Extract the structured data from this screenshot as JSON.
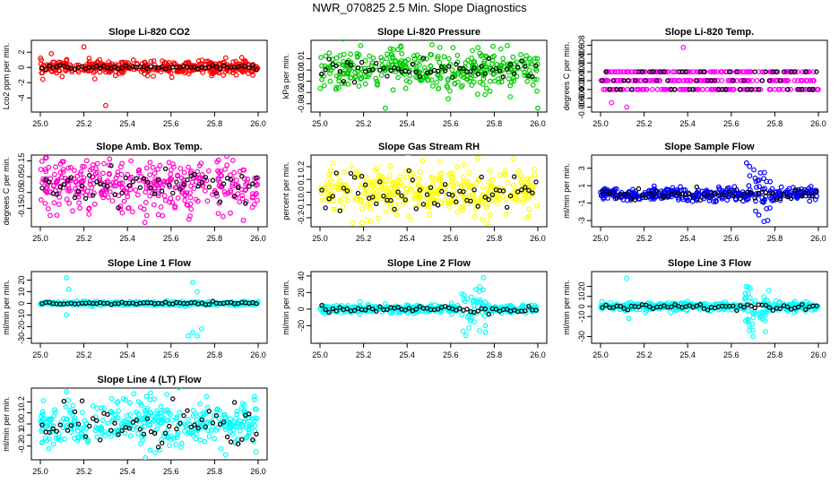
{
  "page_title": "NWR_070825  2.5 Min. Slope Diagnostics",
  "colors": {
    "red": "#ff0000",
    "green": "#00cc00",
    "magenta": "#ff00ff",
    "yellow": "#ffff00",
    "blue": "#0000ff",
    "cyan": "#00ffff",
    "black": "#000000"
  },
  "chart_data": [
    {
      "type": "scatter",
      "title": "Slope Li-820 CO2",
      "ylabel": "Lco2 ppm per min.",
      "color": "#ff0000",
      "xlim": [
        25.0,
        26.0
      ],
      "ylim": [
        -5.5,
        3.2
      ],
      "xticks": [
        25.0,
        25.2,
        25.4,
        25.6,
        25.8,
        26.0
      ],
      "xtick_labels": [
        "25.0",
        "25.2",
        "25.4",
        "25.6",
        "25.8",
        "26.0"
      ],
      "yticks": [
        -4,
        -2,
        0,
        2
      ],
      "ytick_labels": [
        "-4",
        "-2",
        "0",
        "2"
      ],
      "spread": 0.45,
      "black_spread": 0.12,
      "outliers": [
        [
          25.1,
          -1.2
        ],
        [
          25.2,
          2.7
        ],
        [
          25.3,
          -5.0
        ],
        [
          25.05,
          1.8
        ],
        [
          25.25,
          -1.5
        ]
      ]
    },
    {
      "type": "scatter",
      "title": "Slope Li-820 Pressure",
      "ylabel": "kPa per min.",
      "color": "#00cc00",
      "xlim": [
        25.0,
        26.0
      ],
      "ylim": [
        -0.035,
        0.024
      ],
      "xticks": [
        25.0,
        25.2,
        25.4,
        25.6,
        25.8,
        26.0
      ],
      "xtick_labels": [
        "25.0",
        "25.2",
        "25.4",
        "25.6",
        "25.8",
        "26.0"
      ],
      "yticks": [
        -0.03,
        -0.02,
        -0.01,
        0.0,
        0.01
      ],
      "ytick_labels": [
        "-0.03",
        "-0.02",
        "-0.01",
        "0.00",
        "0.01"
      ],
      "spread": 0.009,
      "black_spread": 0.006,
      "outliers": [
        [
          25.3,
          -0.034
        ],
        [
          26.0,
          -0.034
        ],
        [
          25.55,
          0.02
        ]
      ]
    },
    {
      "type": "scatter",
      "title": "Slope Li-820 Temp.",
      "ylabel": "degrees C per min.",
      "color": "#ff00ff",
      "xlim": [
        25.0,
        26.0
      ],
      "ylim": [
        -0.0065,
        0.0085
      ],
      "xticks": [
        25.0,
        25.2,
        25.4,
        25.6,
        25.8,
        26.0
      ],
      "xtick_labels": [
        "25.0",
        "25.2",
        "25.4",
        "25.6",
        "25.8",
        "26.0"
      ],
      "yticks": [
        -0.006,
        -0.004,
        -0.002,
        0.0,
        0.002,
        0.004,
        0.006,
        0.008
      ],
      "ytick_labels": [
        "-0.006",
        "-0.004",
        "-0.002",
        "0.000",
        "0.002",
        "0.004",
        "0.006",
        "0.008"
      ],
      "quantized": [
        -0.002,
        0.0,
        0.002
      ],
      "spread": 0.002,
      "black_spread": 0.002,
      "outliers": [
        [
          25.38,
          0.0075
        ],
        [
          25.05,
          -0.005
        ],
        [
          25.12,
          -0.006
        ]
      ]
    },
    {
      "type": "scatter",
      "title": "Slope Amb. Box Temp.",
      "ylabel": "degrees C per min.",
      "color": "#ff00cc",
      "xlim": [
        25.0,
        26.0
      ],
      "ylim": [
        -0.25,
        0.17
      ],
      "xticks": [
        25.0,
        25.2,
        25.4,
        25.6,
        25.8,
        26.0
      ],
      "xtick_labels": [
        "25.0",
        "25.2",
        "25.4",
        "25.6",
        "25.8",
        "26.0"
      ],
      "yticks": [
        -0.15,
        -0.05,
        0.05,
        0.15
      ],
      "ytick_labels": [
        "-0.15",
        "-0.05",
        "0.05",
        "0.15"
      ],
      "spread": 0.09,
      "black_spread": 0.05,
      "outliers": [
        [
          25.48,
          -0.24
        ]
      ]
    },
    {
      "type": "scatter",
      "title": "Slope Gas Stream RH",
      "ylabel": "percent per min.",
      "color": "#ffff00",
      "xlim": [
        25.0,
        26.0
      ],
      "ylim": [
        -0.25,
        0.27
      ],
      "xticks": [
        25.0,
        25.2,
        25.4,
        25.6,
        25.8,
        26.0
      ],
      "xtick_labels": [
        "25.0",
        "25.2",
        "25.4",
        "25.6",
        "25.8",
        "26.0"
      ],
      "yticks": [
        -0.2,
        -0.1,
        0.0,
        0.1,
        0.2
      ],
      "ytick_labels": [
        "-0.2",
        "-0.1",
        "0.0",
        "0.1",
        "0.2"
      ],
      "spread": 0.09,
      "black_spread": 0.08,
      "outliers": [
        [
          25.55,
          0.24
        ],
        [
          25.15,
          -0.24
        ],
        [
          25.95,
          -0.2
        ]
      ]
    },
    {
      "type": "scatter",
      "title": "Slope Sample Flow",
      "ylabel": "ml/min per min.",
      "color": "#0000ff",
      "xlim": [
        25.0,
        26.0
      ],
      "ylim": [
        -3.4,
        4.2
      ],
      "xticks": [
        25.0,
        25.2,
        25.4,
        25.6,
        25.8,
        26.0
      ],
      "xtick_labels": [
        "25.0",
        "25.2",
        "25.4",
        "25.6",
        "25.8",
        "26.0"
      ],
      "yticks": [
        -3,
        -1,
        1,
        3
      ],
      "ytick_labels": [
        "-3",
        "-1",
        "1",
        "3"
      ],
      "spread": 0.35,
      "black_spread": 0.3,
      "burst_x": 25.72,
      "burst_amp": 3.2,
      "outliers": [
        [
          25.67,
          3.6
        ],
        [
          25.75,
          -3.1
        ]
      ]
    },
    {
      "type": "scatter",
      "title": "Slope Line 1 Flow",
      "ylabel": "ml/min per min.",
      "color": "#00ffff",
      "xlim": [
        25.0,
        26.0
      ],
      "ylim": [
        -32,
        25
      ],
      "xticks": [
        25.0,
        25.2,
        25.4,
        25.6,
        25.8,
        26.0
      ],
      "xtick_labels": [
        "25.0",
        "25.2",
        "25.4",
        "25.6",
        "25.8",
        "26.0"
      ],
      "yticks": [
        -30,
        -20,
        -10,
        0,
        10,
        20
      ],
      "ytick_labels": [
        "-30",
        "-20",
        "-10",
        "0",
        "10",
        "20"
      ],
      "spread": 0.8,
      "black_spread": 0.5,
      "outliers": [
        [
          25.12,
          22
        ],
        [
          25.13,
          12
        ],
        [
          25.12,
          -10
        ],
        [
          25.7,
          18
        ],
        [
          25.72,
          10
        ],
        [
          25.7,
          -25
        ],
        [
          25.72,
          -28
        ],
        [
          25.74,
          -22
        ],
        [
          25.68,
          -28
        ]
      ]
    },
    {
      "type": "scatter",
      "title": "Slope Line 2 Flow",
      "ylabel": "ml/min per min.",
      "color": "#00ffff",
      "xlim": [
        25.0,
        26.0
      ],
      "ylim": [
        -38,
        42
      ],
      "xticks": [
        25.0,
        25.2,
        25.4,
        25.6,
        25.8,
        26.0
      ],
      "xtick_labels": [
        "25.0",
        "25.2",
        "25.4",
        "25.6",
        "25.8",
        "26.0"
      ],
      "yticks": [
        -20,
        0,
        20,
        40
      ],
      "ytick_labels": [
        "-20",
        "0",
        "20",
        "40"
      ],
      "spread": 2.5,
      "black_spread": 2.0,
      "burst_x": 25.7,
      "burst_amp": 30,
      "outliers": [
        [
          25.67,
          -32
        ],
        [
          25.75,
          38
        ],
        [
          25.76,
          -28
        ]
      ]
    },
    {
      "type": "scatter",
      "title": "Slope Line 3 Flow",
      "ylabel": "ml/min per min.",
      "color": "#00ffff",
      "xlim": [
        25.0,
        26.0
      ],
      "ylim": [
        -34,
        32
      ],
      "xticks": [
        25.0,
        25.2,
        25.4,
        25.6,
        25.8,
        26.0
      ],
      "xtick_labels": [
        "25.0",
        "25.2",
        "25.4",
        "25.6",
        "25.8",
        "26.0"
      ],
      "yticks": [
        -30,
        -10,
        0,
        10,
        20
      ],
      "ytick_labels": [
        "-30",
        "-10",
        "0",
        "10",
        "20"
      ],
      "spread": 2.0,
      "black_spread": 1.5,
      "burst_x": 25.72,
      "burst_amp": 28,
      "outliers": [
        [
          25.12,
          28
        ],
        [
          25.13,
          -12
        ],
        [
          25.7,
          -30
        ]
      ]
    },
    {
      "type": "scatter",
      "title": "Slope Line 4 (LT) Flow",
      "ylabel": "ml/min per min.",
      "color": "#00ffff",
      "xlim": [
        25.0,
        26.0
      ],
      "ylim": [
        -0.3,
        0.3
      ],
      "xticks": [
        25.0,
        25.2,
        25.4,
        25.6,
        25.8,
        26.0
      ],
      "xtick_labels": [
        "25.0",
        "25.2",
        "25.4",
        "25.6",
        "25.8",
        "26.0"
      ],
      "yticks": [
        -0.2,
        -0.1,
        0.0,
        0.1,
        0.2
      ],
      "ytick_labels": [
        "-0.2",
        "-0.1",
        "0.0",
        "0.1",
        "0.2"
      ],
      "spread": 0.11,
      "black_spread": 0.1,
      "outliers": [
        [
          25.12,
          0.29
        ],
        [
          25.85,
          -0.28
        ]
      ]
    }
  ]
}
